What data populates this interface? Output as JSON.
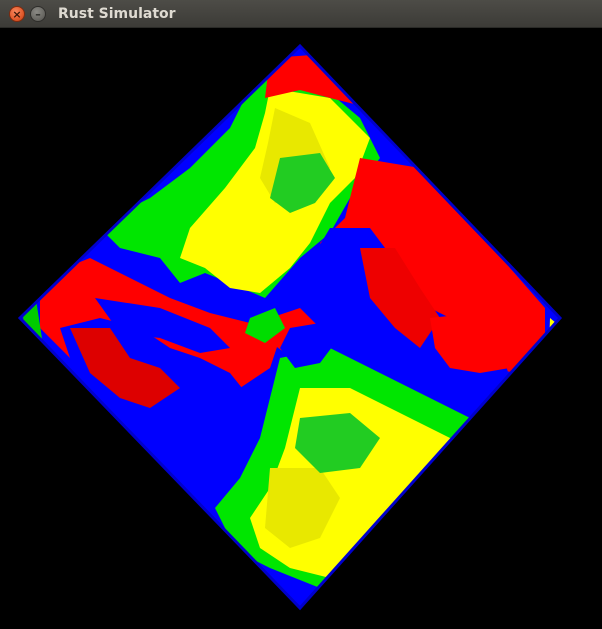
{
  "window": {
    "title": "Rust Simulator",
    "close_glyph": "×",
    "minimize_glyph": "–"
  },
  "colors": {
    "background": "#000000",
    "red": "#ff0000",
    "green": "#00ee00",
    "blue": "#0000ff",
    "yellow": "#ffff00",
    "titlebar": "#3c3b37",
    "close_button": "#e25a2b"
  },
  "icons": {
    "close": "close-icon",
    "minimize": "minimize-icon"
  }
}
